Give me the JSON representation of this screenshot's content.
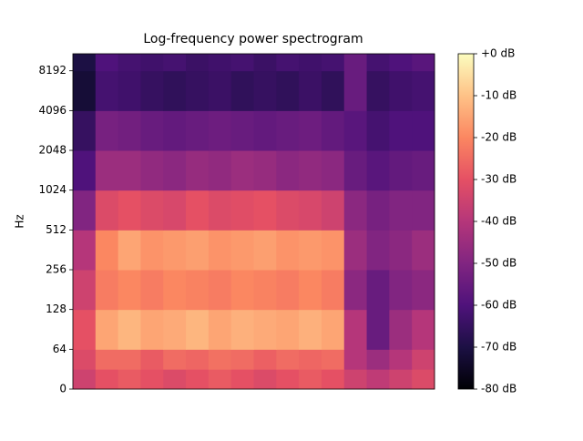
{
  "chart_data": {
    "type": "heatmap",
    "title": "Log-frequency power spectrogram",
    "y_label": "Hz",
    "y_scale": "symlog",
    "y_linthresh": 64,
    "ylim": [
      0,
      11025
    ],
    "yticks": [
      0,
      64,
      128,
      256,
      512,
      1024,
      2048,
      4096,
      8192
    ],
    "y_bins": [
      0,
      32,
      64,
      128,
      256,
      512,
      1024,
      2048,
      4096,
      8192,
      11025
    ],
    "colormap": "magma",
    "clim": [
      -80,
      0
    ],
    "cticks": [
      {
        "value": 0,
        "label": "+0 dB"
      },
      {
        "value": -10,
        "label": "-10 dB"
      },
      {
        "value": -20,
        "label": "-20 dB"
      },
      {
        "value": -30,
        "label": "-30 dB"
      },
      {
        "value": -40,
        "label": "-40 dB"
      },
      {
        "value": -50,
        "label": "-50 dB"
      },
      {
        "value": -60,
        "label": "-60 dB"
      },
      {
        "value": -70,
        "label": "-70 dB"
      },
      {
        "value": -80,
        "label": "-80 dB"
      }
    ],
    "z": [
      [
        -35,
        -30,
        -28,
        -30,
        -32,
        -30,
        -28,
        -30,
        -32,
        -30,
        -28,
        -30,
        -35,
        -38,
        -35,
        -32
      ],
      [
        -32,
        -25,
        -25,
        -28,
        -25,
        -26,
        -24,
        -25,
        -27,
        -25,
        -26,
        -25,
        -40,
        -45,
        -40,
        -35
      ],
      [
        -30,
        -15,
        -12,
        -15,
        -14,
        -12,
        -15,
        -13,
        -14,
        -15,
        -13,
        -15,
        -40,
        -55,
        -45,
        -40
      ],
      [
        -35,
        -22,
        -20,
        -22,
        -20,
        -21,
        -22,
        -20,
        -21,
        -22,
        -20,
        -22,
        -48,
        -55,
        -50,
        -48
      ],
      [
        -40,
        -20,
        -15,
        -18,
        -17,
        -16,
        -18,
        -17,
        -16,
        -18,
        -17,
        -18,
        -45,
        -50,
        -48,
        -45
      ],
      [
        -50,
        -32,
        -30,
        -32,
        -33,
        -30,
        -32,
        -31,
        -30,
        -32,
        -33,
        -35,
        -48,
        -52,
        -50,
        -50
      ],
      [
        -60,
        -45,
        -45,
        -47,
        -48,
        -46,
        -47,
        -45,
        -46,
        -48,
        -47,
        -48,
        -55,
        -58,
        -56,
        -55
      ],
      [
        -65,
        -52,
        -53,
        -55,
        -56,
        -55,
        -54,
        -55,
        -56,
        -55,
        -54,
        -56,
        -58,
        -62,
        -60,
        -60
      ],
      [
        -72,
        -62,
        -63,
        -65,
        -66,
        -65,
        -64,
        -66,
        -65,
        -66,
        -64,
        -66,
        -55,
        -65,
        -63,
        -62
      ],
      [
        -70,
        -60,
        -62,
        -63,
        -62,
        -64,
        -63,
        -62,
        -64,
        -62,
        -63,
        -62,
        -55,
        -62,
        -60,
        -58
      ]
    ]
  }
}
